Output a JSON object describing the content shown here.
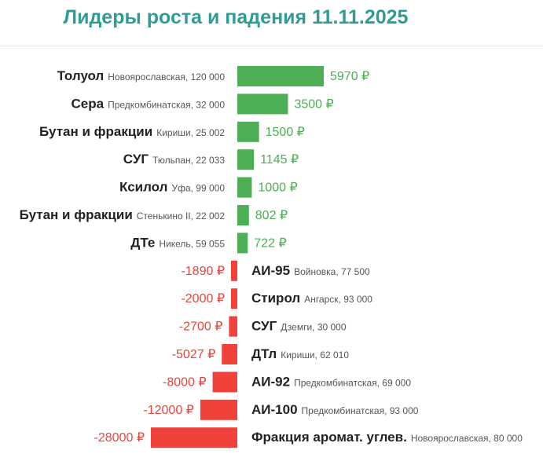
{
  "title": "Лидеры роста и падения 11.11.2025",
  "colors": {
    "positive": "#4cae55",
    "negative": "#f0413a",
    "title": "#2f9c96"
  },
  "chart_data": {
    "type": "bar",
    "orientation": "horizontal",
    "title": "Лидеры роста и падения 11.11.2025",
    "unit": "₽",
    "rows": [
      {
        "product": "Толуол",
        "place": "Новоярославская, 120 000",
        "value": 5970,
        "label": "5970 ₽"
      },
      {
        "product": "Сера",
        "place": "Предкомбинатская, 32 000",
        "value": 3500,
        "label": "3500 ₽"
      },
      {
        "product": "Бутан и фракции",
        "place": "Кириши, 25 002",
        "value": 1500,
        "label": "1500 ₽"
      },
      {
        "product": "СУГ",
        "place": "Тюльпан, 22 033",
        "value": 1145,
        "label": "1145 ₽"
      },
      {
        "product": "Ксилол",
        "place": "Уфа, 99 000",
        "value": 1000,
        "label": "1000 ₽"
      },
      {
        "product": "Бутан и фракции",
        "place": "Стенькино II, 22 002",
        "value": 802,
        "label": "802 ₽"
      },
      {
        "product": "ДТе",
        "place": "Никель, 59 055",
        "value": 722,
        "label": "722 ₽"
      },
      {
        "product": "АИ-95",
        "place": "Войновка, 77 500",
        "value": -1890,
        "label": "-1890 ₽"
      },
      {
        "product": "Стирол",
        "place": "Ангарск, 93 000",
        "value": -2000,
        "label": "-2000 ₽"
      },
      {
        "product": "СУГ",
        "place": "Дземги, 30 000",
        "value": -2700,
        "label": "-2700 ₽"
      },
      {
        "product": "ДТл",
        "place": "Кириши, 62 010",
        "value": -5027,
        "label": "-5027 ₽"
      },
      {
        "product": "АИ-92",
        "place": "Предкомбинатская, 69 000",
        "value": -8000,
        "label": "-8000 ₽"
      },
      {
        "product": "АИ-100",
        "place": "Предкомбинатская, 93 000",
        "value": -12000,
        "label": "-12000 ₽"
      },
      {
        "product": "Фракция аромат. углев.",
        "place": "Новоярославская, 80 000",
        "value": -28000,
        "label": "-28000 ₽"
      }
    ]
  }
}
